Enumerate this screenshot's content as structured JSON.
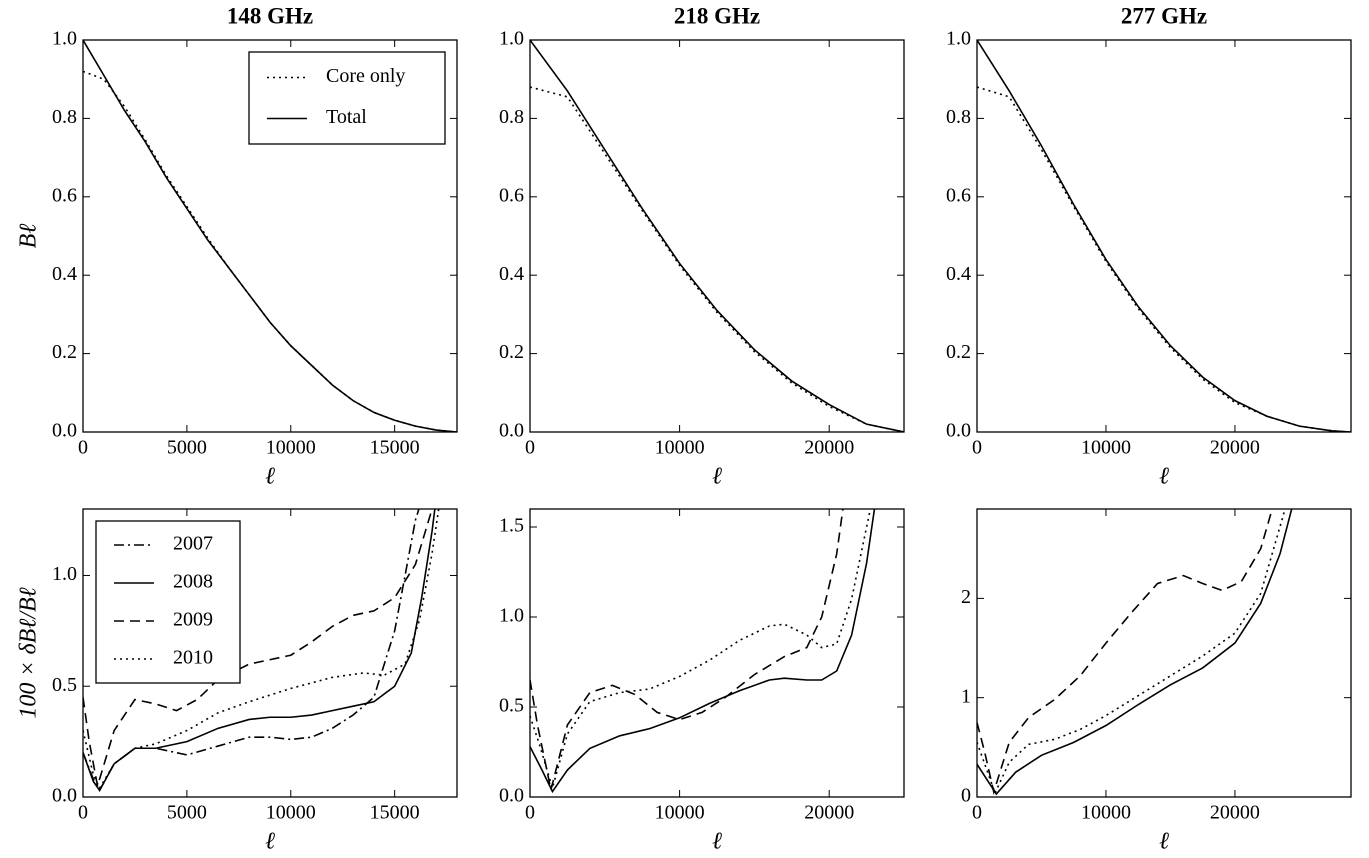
{
  "chart_data": [
    {
      "type": "line",
      "title": "148 GHz",
      "xlabel": "ℓ",
      "ylabel": "Bℓ",
      "xlim": [
        0,
        18000
      ],
      "ylim": [
        0,
        1.0
      ],
      "xticks": [
        0,
        5000,
        10000,
        15000
      ],
      "yticks": [
        {
          "value": 0,
          "label": "0.0"
        },
        {
          "value": 0.2,
          "label": "0.2"
        },
        {
          "value": 0.4,
          "label": "0.4"
        },
        {
          "value": 0.6,
          "label": "0.6"
        },
        {
          "value": 0.8,
          "label": "0.8"
        },
        {
          "value": 1.0,
          "label": "1.0"
        }
      ],
      "legend": "upper right",
      "series": [
        {
          "name": "Core only",
          "color": "#000000",
          "style": "dotted",
          "x": [
            0,
            1000,
            2000,
            3000,
            4000,
            5000,
            6000,
            7000,
            8000,
            9000,
            10000,
            11000,
            12000,
            13000,
            14000,
            15000,
            16000,
            17000,
            18000
          ],
          "values": [
            0.92,
            0.9,
            0.83,
            0.745,
            0.655,
            0.575,
            0.495,
            0.42,
            0.35,
            0.28,
            0.22,
            0.17,
            0.12,
            0.08,
            0.05,
            0.03,
            0.015,
            0.005,
            0
          ]
        },
        {
          "name": "Total",
          "color": "#000000",
          "style": "solid",
          "x": [
            0,
            1000,
            2000,
            3000,
            4000,
            5000,
            6000,
            7000,
            8000,
            9000,
            10000,
            11000,
            12000,
            13000,
            14000,
            15000,
            16000,
            17000,
            18000
          ],
          "values": [
            1.0,
            0.91,
            0.82,
            0.74,
            0.65,
            0.57,
            0.49,
            0.42,
            0.35,
            0.28,
            0.22,
            0.17,
            0.12,
            0.08,
            0.05,
            0.03,
            0.015,
            0.005,
            0
          ]
        }
      ]
    },
    {
      "type": "line",
      "title": "218 GHz",
      "xlabel": "ℓ",
      "xlim": [
        0,
        25000
      ],
      "ylim": [
        0,
        1.0
      ],
      "xticks": [
        0,
        10000,
        20000
      ],
      "yticks": [
        {
          "value": 0,
          "label": "0.0"
        },
        {
          "value": 0.2,
          "label": "0.2"
        },
        {
          "value": 0.4,
          "label": "0.4"
        },
        {
          "value": 0.6,
          "label": "0.6"
        },
        {
          "value": 0.8,
          "label": "0.8"
        },
        {
          "value": 1.0,
          "label": "1.0"
        }
      ],
      "series": [
        {
          "color": "#000000",
          "style": "dotted",
          "x": [
            0,
            2500,
            5000,
            7500,
            10000,
            12500,
            15000,
            17500,
            20000,
            22500,
            25000
          ],
          "values": [
            0.88,
            0.855,
            0.71,
            0.565,
            0.425,
            0.305,
            0.205,
            0.125,
            0.065,
            0.02,
            0
          ]
        },
        {
          "color": "#000000",
          "style": "solid",
          "x": [
            0,
            2500,
            5000,
            7500,
            10000,
            12500,
            15000,
            17500,
            20000,
            22500,
            25000
          ],
          "values": [
            1.0,
            0.87,
            0.72,
            0.57,
            0.43,
            0.31,
            0.21,
            0.13,
            0.07,
            0.02,
            0
          ]
        }
      ]
    },
    {
      "type": "line",
      "title": "277 GHz",
      "xlabel": "ℓ",
      "xlim": [
        0,
        29000
      ],
      "ylim": [
        0,
        1.0
      ],
      "xticks": [
        0,
        10000,
        20000
      ],
      "yticks": [
        {
          "value": 0,
          "label": "0.0"
        },
        {
          "value": 0.2,
          "label": "0.2"
        },
        {
          "value": 0.4,
          "label": "0.4"
        },
        {
          "value": 0.6,
          "label": "0.6"
        },
        {
          "value": 0.8,
          "label": "0.8"
        },
        {
          "value": 1.0,
          "label": "1.0"
        }
      ],
      "series": [
        {
          "color": "#000000",
          "style": "dotted",
          "x": [
            0,
            2500,
            5000,
            7500,
            10000,
            12500,
            15000,
            17500,
            20000,
            22500,
            25000,
            27500,
            29000
          ],
          "values": [
            0.88,
            0.855,
            0.72,
            0.575,
            0.435,
            0.315,
            0.215,
            0.135,
            0.075,
            0.04,
            0.015,
            0.003,
            0
          ]
        },
        {
          "color": "#000000",
          "style": "solid",
          "x": [
            0,
            2500,
            5000,
            7500,
            10000,
            12500,
            15000,
            17500,
            20000,
            22500,
            25000,
            27500,
            29000
          ],
          "values": [
            1.0,
            0.87,
            0.73,
            0.58,
            0.44,
            0.32,
            0.22,
            0.14,
            0.08,
            0.04,
            0.015,
            0.003,
            0
          ]
        }
      ]
    },
    {
      "type": "line",
      "xlabel": "ℓ",
      "ylabel": "100 × δBℓ/Bℓ",
      "xlim": [
        0,
        18000
      ],
      "ylim": [
        0,
        1.3
      ],
      "xticks": [
        0,
        5000,
        10000,
        15000
      ],
      "yticks": [
        {
          "value": 0,
          "label": "0.0"
        },
        {
          "value": 0.5,
          "label": "0.5"
        },
        {
          "value": 1.0,
          "label": "1.0"
        }
      ],
      "legend": "upper left",
      "series": [
        {
          "name": "2007",
          "color": "#000000",
          "style": "dashdot",
          "x": [
            0,
            500,
            800,
            1500,
            2500,
            3500,
            5000,
            6500,
            8000,
            9000,
            10000,
            11000,
            12000,
            13000,
            14000,
            15000,
            15500,
            16000,
            16500
          ],
          "values": [
            0.2,
            0.08,
            0.03,
            0.15,
            0.22,
            0.22,
            0.19,
            0.23,
            0.27,
            0.27,
            0.26,
            0.27,
            0.31,
            0.37,
            0.45,
            0.75,
            1.0,
            1.25,
            1.4
          ]
        },
        {
          "name": "2008",
          "color": "#000000",
          "style": "solid",
          "x": [
            0,
            500,
            800,
            1500,
            2500,
            3500,
            5000,
            6500,
            8000,
            9000,
            10000,
            11000,
            12000,
            13000,
            14000,
            15000,
            15800,
            16300,
            16800,
            17000
          ],
          "values": [
            0.2,
            0.07,
            0.03,
            0.15,
            0.22,
            0.22,
            0.25,
            0.31,
            0.35,
            0.36,
            0.36,
            0.37,
            0.39,
            0.41,
            0.43,
            0.5,
            0.65,
            0.9,
            1.2,
            1.35
          ]
        },
        {
          "name": "2009",
          "color": "#000000",
          "style": "dashed",
          "x": [
            0,
            300,
            700,
            1500,
            2500,
            3500,
            4500,
            5500,
            6500,
            8000,
            10000,
            11000,
            12000,
            13000,
            14000,
            15000,
            16000,
            16800
          ],
          "values": [
            0.45,
            0.25,
            0.05,
            0.3,
            0.44,
            0.42,
            0.39,
            0.44,
            0.53,
            0.6,
            0.64,
            0.7,
            0.77,
            0.82,
            0.84,
            0.9,
            1.05,
            1.3
          ]
        },
        {
          "name": "2010",
          "color": "#000000",
          "style": "dotted",
          "x": [
            0,
            500,
            800,
            1500,
            2500,
            3500,
            5000,
            6500,
            8000,
            10000,
            12000,
            13500,
            14500,
            15500,
            16200,
            16800,
            17200
          ],
          "values": [
            0.3,
            0.1,
            0.04,
            0.15,
            0.22,
            0.24,
            0.3,
            0.38,
            0.43,
            0.49,
            0.54,
            0.56,
            0.55,
            0.6,
            0.8,
            1.1,
            1.35
          ]
        }
      ]
    },
    {
      "type": "line",
      "xlabel": "ℓ",
      "xlim": [
        0,
        25000
      ],
      "ylim": [
        0,
        1.6
      ],
      "xticks": [
        0,
        10000,
        20000
      ],
      "yticks": [
        {
          "value": 0,
          "label": "0.0"
        },
        {
          "value": 0.5,
          "label": "0.5"
        },
        {
          "value": 1.0,
          "label": "1.0"
        },
        {
          "value": 1.5,
          "label": "1.5"
        }
      ],
      "series": [
        {
          "color": "#000000",
          "style": "solid",
          "x": [
            0,
            800,
            1500,
            2500,
            4000,
            6000,
            8000,
            10000,
            12000,
            14000,
            16000,
            17000,
            18500,
            19500,
            20500,
            21500,
            22500,
            23200
          ],
          "values": [
            0.28,
            0.15,
            0.03,
            0.15,
            0.27,
            0.34,
            0.38,
            0.44,
            0.52,
            0.59,
            0.65,
            0.66,
            0.65,
            0.65,
            0.7,
            0.9,
            1.3,
            1.7
          ]
        },
        {
          "color": "#000000",
          "style": "dashed",
          "x": [
            0,
            500,
            1400,
            2500,
            4000,
            5500,
            7000,
            8500,
            10000,
            11500,
            13000,
            15000,
            17000,
            18500,
            19500,
            20500,
            21000
          ],
          "values": [
            0.65,
            0.4,
            0.04,
            0.4,
            0.58,
            0.62,
            0.57,
            0.47,
            0.43,
            0.47,
            0.55,
            0.68,
            0.78,
            0.83,
            1.0,
            1.35,
            1.65
          ]
        },
        {
          "color": "#000000",
          "style": "dotted",
          "x": [
            0,
            600,
            1500,
            2500,
            4000,
            6000,
            8000,
            10000,
            12000,
            14000,
            16000,
            17000,
            18500,
            19500,
            20500,
            21500,
            22500,
            23000
          ],
          "values": [
            0.45,
            0.3,
            0.05,
            0.35,
            0.53,
            0.58,
            0.6,
            0.67,
            0.76,
            0.87,
            0.95,
            0.96,
            0.9,
            0.83,
            0.85,
            1.1,
            1.5,
            1.7
          ]
        }
      ]
    },
    {
      "type": "line",
      "xlabel": "ℓ",
      "xlim": [
        0,
        29000
      ],
      "ylim": [
        0,
        2.9
      ],
      "xticks": [
        0,
        10000,
        20000
      ],
      "yticks": [
        0,
        1,
        2
      ],
      "series": [
        {
          "color": "#000000",
          "style": "solid",
          "x": [
            0,
            1500,
            3000,
            5000,
            7500,
            10000,
            12500,
            15000,
            17500,
            20000,
            22000,
            23500,
            24500
          ],
          "values": [
            0.33,
            0.03,
            0.25,
            0.42,
            0.55,
            0.72,
            0.93,
            1.13,
            1.3,
            1.55,
            1.95,
            2.45,
            2.95
          ]
        },
        {
          "color": "#000000",
          "style": "dashed",
          "x": [
            0,
            600,
            1300,
            2500,
            4000,
            6000,
            8000,
            10000,
            12000,
            14000,
            16000,
            17500,
            19000,
            20500,
            22000,
            23000
          ],
          "values": [
            0.75,
            0.45,
            0.05,
            0.55,
            0.8,
            0.98,
            1.22,
            1.55,
            1.86,
            2.15,
            2.23,
            2.15,
            2.08,
            2.17,
            2.5,
            2.95
          ]
        },
        {
          "color": "#000000",
          "style": "dotted",
          "x": [
            0,
            1400,
            2500,
            4000,
            6000,
            8000,
            10000,
            12500,
            15000,
            17500,
            20000,
            22000,
            24000
          ],
          "values": [
            0.55,
            0.04,
            0.35,
            0.53,
            0.58,
            0.68,
            0.82,
            1.02,
            1.22,
            1.42,
            1.65,
            2.05,
            2.95
          ]
        }
      ]
    }
  ]
}
